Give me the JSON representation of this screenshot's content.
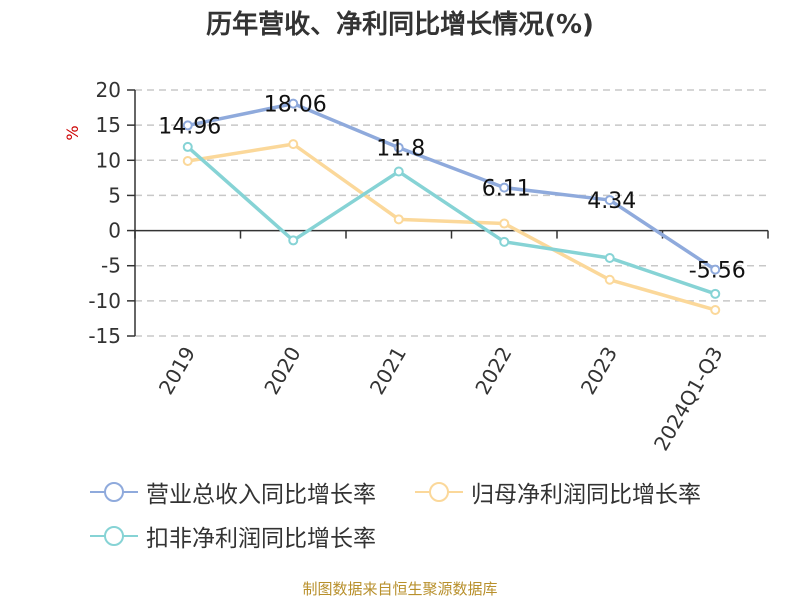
{
  "title": "历年营收、净利同比增长情况(%)",
  "source": "制图数据来自恒生聚源数据库",
  "chart_data": {
    "type": "line",
    "title": "历年营收、净利同比增长情况(%)",
    "ylabel": "%",
    "xlabel": "",
    "categories": [
      "2019",
      "2020",
      "2021",
      "2022",
      "2023",
      "2024Q1-Q3"
    ],
    "ylim": [
      -15,
      20
    ],
    "yticks": [
      20,
      15,
      10,
      5,
      0,
      -5,
      -10,
      -15
    ],
    "grid": "horizontal dashed",
    "legend_position": "bottom",
    "series": [
      {
        "name": "营业总收入同比增长率",
        "color": "#8faadc",
        "values": [
          14.96,
          18.06,
          11.8,
          6.11,
          4.34,
          -5.56
        ],
        "labels": [
          "14.96",
          "18.06",
          "11.8",
          "6.11",
          "4.34",
          "-5.56"
        ]
      },
      {
        "name": "归母净利润同比增长率",
        "color": "#fbd89a",
        "values": [
          9.9,
          12.3,
          1.6,
          1.0,
          -7.0,
          -11.3
        ]
      },
      {
        "name": "扣非净利润同比增长率",
        "color": "#86d3d5",
        "values": [
          11.9,
          -1.4,
          8.4,
          -1.6,
          -3.9,
          -9.0
        ]
      }
    ]
  }
}
